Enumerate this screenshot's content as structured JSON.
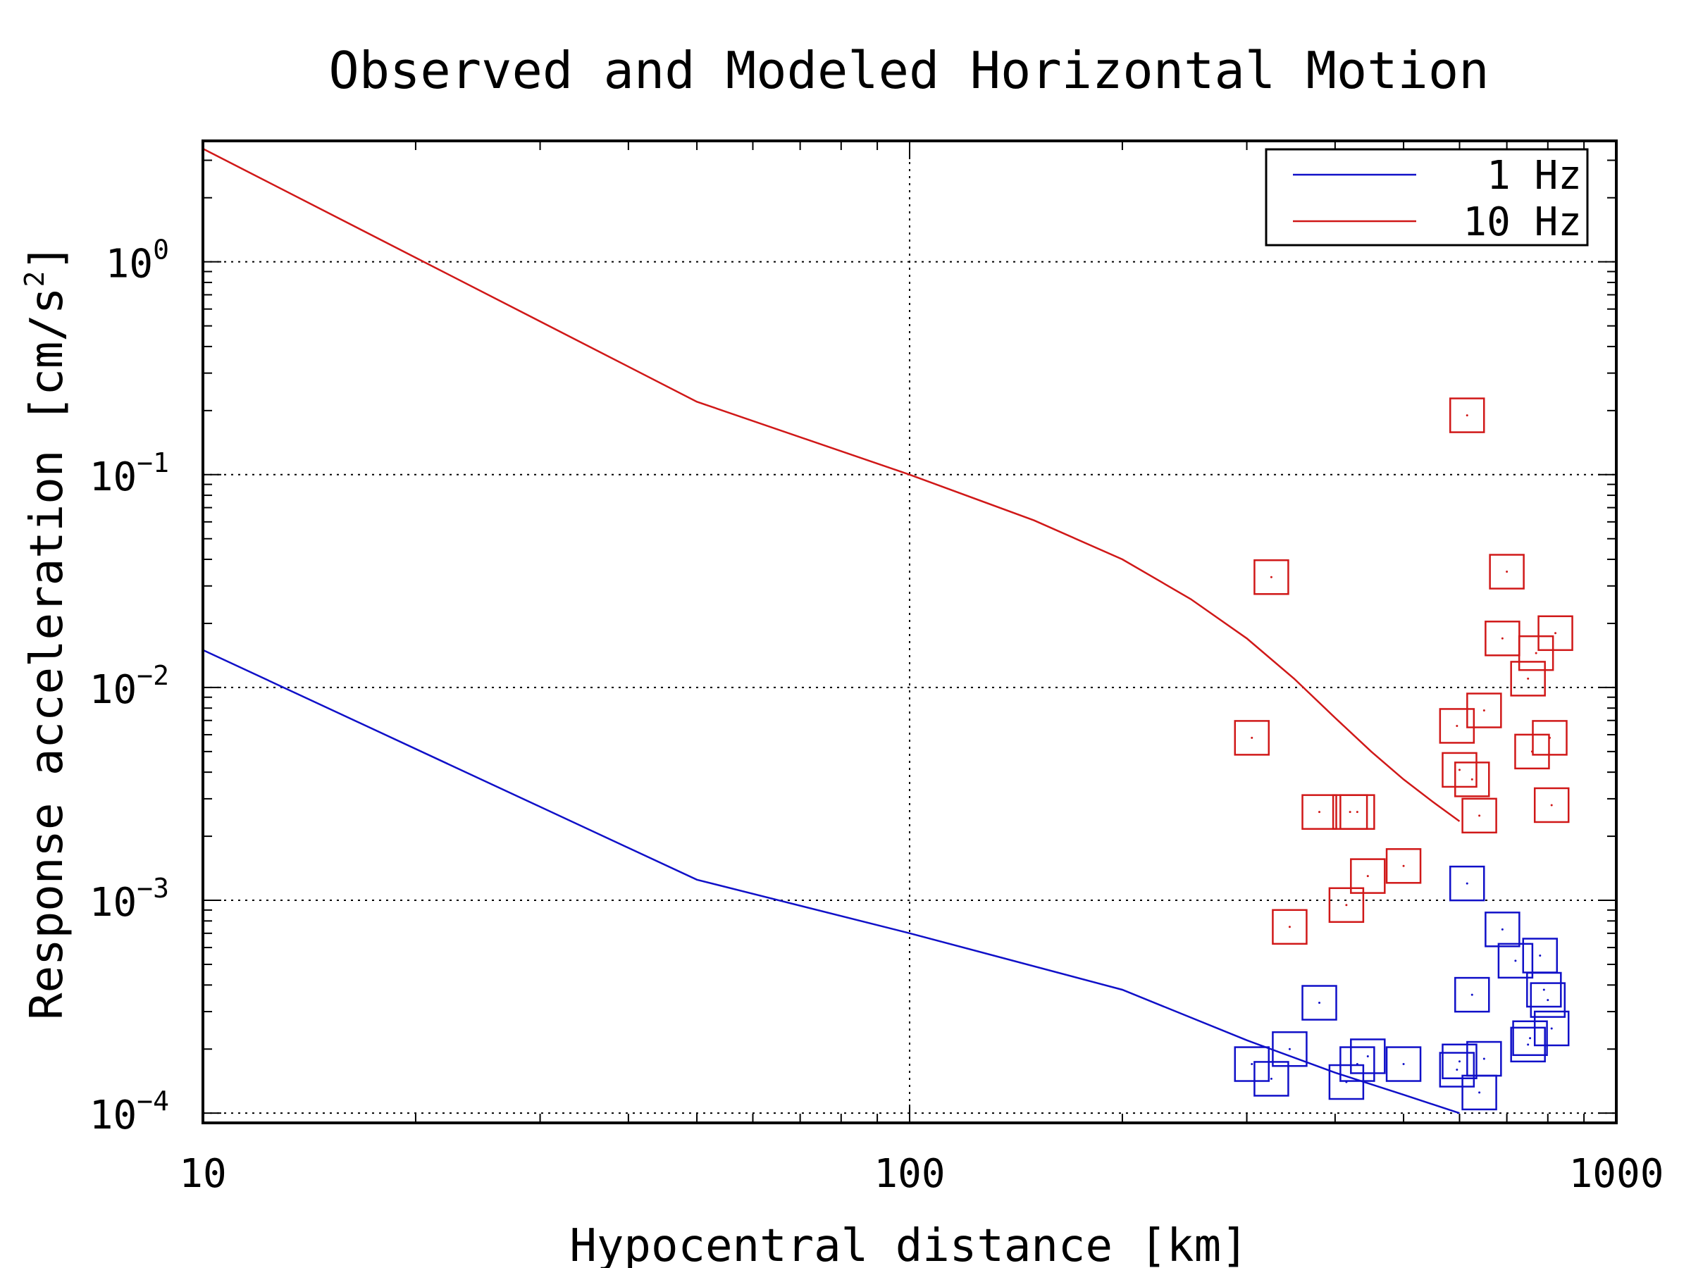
{
  "chart_data": {
    "type": "scatter",
    "title": "Observed and Modeled Horizontal Motion",
    "xlabel": "Hypocentral distance [km]",
    "ylabel_text": "Response acceleration [cm/s",
    "ylabel_sup": "2",
    "ylabel_close": "]",
    "xscale": "log",
    "yscale": "log",
    "xlim": [
      10,
      1000
    ],
    "ylim": [
      9e-05,
      3.7
    ],
    "x_ticks": [
      10,
      100,
      1000
    ],
    "x_tick_labels": [
      "10",
      "100",
      "1000"
    ],
    "y_ticks": [
      0.0001,
      0.001,
      0.01,
      0.1,
      1
    ],
    "y_tick_base": "10",
    "y_tick_exponents": [
      "−4",
      "−3",
      "−2",
      "−1",
      "0"
    ],
    "grid": true,
    "legend_position": "top-right",
    "series": [
      {
        "name": "1 Hz",
        "color": "#1010c8",
        "line": {
          "x": [
            10,
            50,
            100,
            200,
            300,
            400,
            500,
            600
          ],
          "y": [
            0.015,
            0.00125,
            0.0007,
            0.00038,
            0.00022,
            0.000155,
            0.000122,
            0.0001
          ]
        },
        "points": {
          "x": [
            305,
            325,
            345,
            380,
            415,
            430,
            445,
            500,
            595,
            600,
            615,
            625,
            640,
            650,
            690,
            720,
            750,
            755,
            780,
            790,
            800,
            810
          ],
          "y": [
            0.00017,
            0.000145,
            0.0002,
            0.00033,
            0.00014,
            0.00017,
            0.000185,
            0.00017,
            0.00016,
            0.000175,
            0.0012,
            0.00036,
            0.000125,
            0.00018,
            0.00073,
            0.00052,
            0.00021,
            0.000225,
            0.00055,
            0.00038,
            0.00034,
            0.00025
          ]
        }
      },
      {
        "name": "10 Hz",
        "color": "#d01818",
        "line": {
          "x": [
            10,
            50,
            100,
            150,
            200,
            250,
            300,
            350,
            400,
            450,
            500,
            550,
            600
          ],
          "y": [
            3.4,
            0.22,
            0.1,
            0.061,
            0.04,
            0.026,
            0.017,
            0.011,
            0.0072,
            0.005,
            0.0037,
            0.0029,
            0.00235
          ]
        },
        "points": {
          "x": [
            305,
            325,
            345,
            380,
            415,
            420,
            430,
            445,
            500,
            595,
            600,
            615,
            625,
            640,
            650,
            690,
            700,
            750,
            760,
            770,
            805,
            810,
            820
          ],
          "y": [
            0.0058,
            0.033,
            0.00075,
            0.0026,
            0.00095,
            0.0026,
            0.0026,
            0.0013,
            0.00145,
            0.0066,
            0.0041,
            0.19,
            0.0037,
            0.0025,
            0.0078,
            0.017,
            0.035,
            0.011,
            0.005,
            0.0145,
            0.0058,
            0.0028,
            0.018
          ]
        }
      }
    ]
  }
}
